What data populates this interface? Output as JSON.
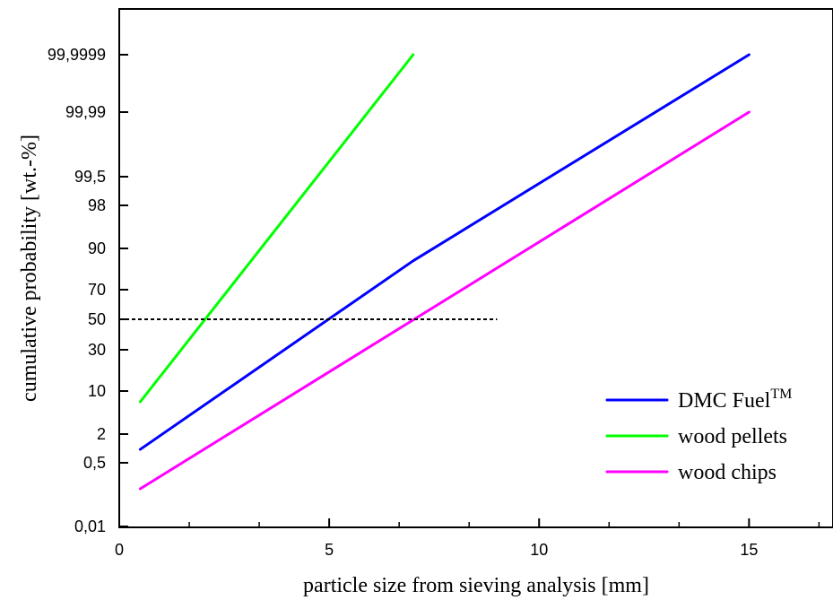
{
  "chart_data": {
    "type": "line",
    "title": "",
    "xlabel": "particle size from sieving analysis [mm]",
    "ylabel": "cumulative probability [wt.-%]",
    "xlim": [
      0,
      17
    ],
    "x_ticks": [
      0,
      5,
      10,
      15
    ],
    "x_tick_labels": [
      "0",
      "5",
      "10",
      "15"
    ],
    "y_scale": "probability",
    "y_ticks": [
      0.01,
      0.5,
      2,
      10,
      30,
      50,
      70,
      90,
      98,
      99.5,
      99.99,
      99.9999
    ],
    "y_tick_labels": [
      "0,01",
      "0,5",
      "2",
      "10",
      "30",
      "50",
      "70",
      "90",
      "98",
      "99,5",
      "99,99",
      "99,9999"
    ],
    "series": [
      {
        "name": "DMC Fuel",
        "name_superscript": "TM",
        "color": "#0000ff",
        "x": [
          0.5,
          7,
          15
        ],
        "y": [
          1.2,
          84,
          99.9999
        ]
      },
      {
        "name": "wood pellets",
        "color": "#00ff00",
        "x": [
          0.5,
          7
        ],
        "y": [
          8,
          99.9999
        ]
      },
      {
        "name": "wood chips",
        "color": "#ff00ff",
        "x": [
          0.5,
          15
        ],
        "y": [
          0.3,
          99.99
        ]
      }
    ],
    "reference_line": {
      "style": "dashed",
      "y": 50,
      "x": [
        0,
        9
      ]
    },
    "grid": false,
    "legend_position": "bottom-right"
  }
}
